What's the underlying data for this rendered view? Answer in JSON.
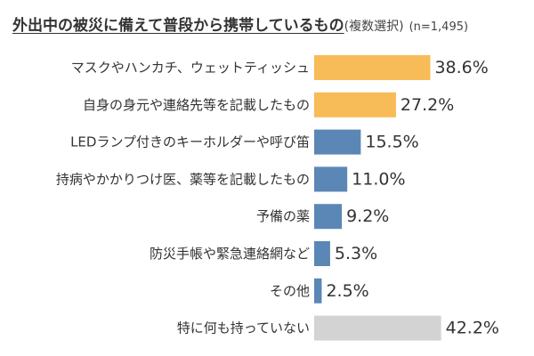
{
  "chart_data": {
    "type": "bar",
    "orientation": "horizontal",
    "title": "外出中の被災に備えて普段から携帯しているもの",
    "title_note": "(複数選択)",
    "sample_size": "(n=1,495)",
    "value_suffix": "%",
    "categories": [
      "マスクやハンカチ、ウェットティッシュ",
      "自身の身元や連絡先等を記載したもの",
      "LEDランプ付きのキーホルダーや呼び笛",
      "持病やかかりつけ医、薬等を記載したもの",
      "予備の薬",
      "防災手帳や緊急連絡網など",
      "その他",
      "特に何も持っていない"
    ],
    "values": [
      38.6,
      27.2,
      15.5,
      11.0,
      9.2,
      5.3,
      2.5,
      42.2
    ],
    "value_labels": [
      "38.6%",
      "27.2%",
      "15.5%",
      "11.0%",
      "9.2%",
      "5.3%",
      "2.5%",
      "42.2%"
    ],
    "bar_colors": [
      "#F7BB57",
      "#F7BB57",
      "#5B87B6",
      "#5B87B6",
      "#5B87B6",
      "#5B87B6",
      "#5B87B6",
      "#D3D3D3"
    ],
    "xlim": [
      0,
      45
    ],
    "grid": false,
    "legend": "none"
  }
}
